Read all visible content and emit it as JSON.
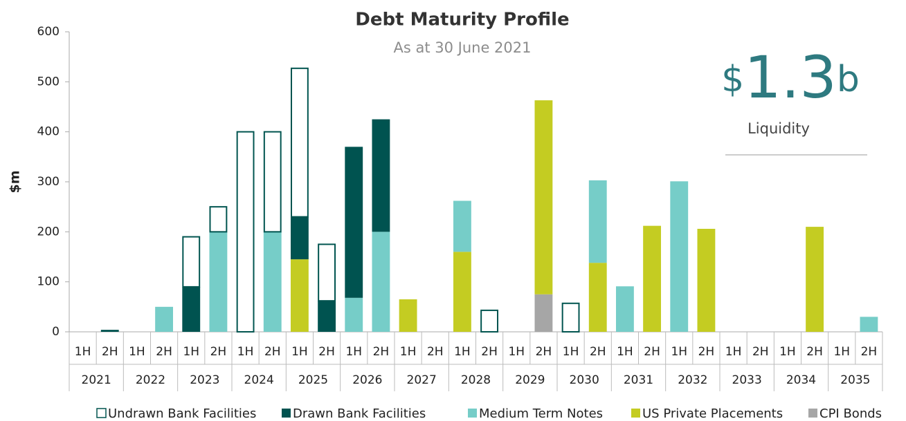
{
  "chart_data": {
    "type": "stacked_bar",
    "title": "Debt Maturity  Profile",
    "subtitle": "As at  30 June 2021",
    "ylabel": "$m",
    "annotation": {
      "currency": "$",
      "amount": "1.3",
      "unit": "b",
      "label": "Liquidity"
    },
    "categories": [
      "1H",
      "2H",
      "1H",
      "2H",
      "1H",
      "2H",
      "1H",
      "2H",
      "1H",
      "2H",
      "1H",
      "2H",
      "1H",
      "2H",
      "1H",
      "2H",
      "1H",
      "2H",
      "1H",
      "2H",
      "1H",
      "2H",
      "1H",
      "2H",
      "1H",
      "2H",
      "1H",
      "2H",
      "1H",
      "2H"
    ],
    "groups": [
      "2021",
      "2022",
      "2023",
      "2024",
      "2025",
      "2026",
      "2027",
      "2028",
      "2029",
      "2030",
      "2031",
      "2032",
      "2033",
      "2034",
      "2035"
    ],
    "series": [
      {
        "name": "CPI Bonds",
        "color": "#a6a6a6",
        "values": [
          null,
          null,
          null,
          null,
          null,
          null,
          null,
          null,
          null,
          null,
          null,
          null,
          null,
          null,
          null,
          null,
          null,
          75,
          null,
          null,
          null,
          null,
          null,
          null,
          null,
          null,
          null,
          null,
          null,
          null
        ]
      },
      {
        "name": "US Private Placements",
        "color": "#c4cc22",
        "values": [
          null,
          null,
          null,
          null,
          null,
          null,
          null,
          null,
          145,
          null,
          null,
          null,
          65,
          null,
          160,
          null,
          null,
          388,
          null,
          138,
          null,
          212,
          null,
          206,
          null,
          null,
          null,
          210,
          null,
          null
        ]
      },
      {
        "name": "Medium Term Notes",
        "color": "#76cdc8",
        "values": [
          null,
          null,
          null,
          50,
          null,
          200,
          null,
          200,
          null,
          null,
          68,
          200,
          null,
          null,
          102,
          null,
          null,
          null,
          null,
          165,
          91,
          null,
          301,
          null,
          null,
          null,
          null,
          null,
          null,
          30
        ]
      },
      {
        "name": "Drawn Bank Facilities",
        "color": "#005350",
        "values": [
          null,
          4,
          null,
          null,
          90,
          null,
          null,
          null,
          85,
          62,
          302,
          225,
          null,
          null,
          null,
          null,
          null,
          null,
          null,
          null,
          null,
          null,
          null,
          null,
          null,
          null,
          null,
          null,
          null,
          null
        ]
      },
      {
        "name": "Undrawn Bank Facilities",
        "color": "#ffffff",
        "edgecolor": "#00544f",
        "values": [
          null,
          null,
          null,
          null,
          100,
          50,
          400,
          200,
          297,
          113,
          null,
          null,
          null,
          null,
          null,
          43,
          null,
          null,
          57,
          null,
          null,
          null,
          null,
          null,
          null,
          null,
          null,
          null,
          null,
          null
        ]
      }
    ],
    "legend_order": [
      4,
      3,
      2,
      1,
      0
    ],
    "ylim": [
      0,
      600
    ],
    "yticks": [
      0,
      100,
      200,
      300,
      400,
      500,
      600
    ],
    "grid": false,
    "legend": "bottom"
  }
}
